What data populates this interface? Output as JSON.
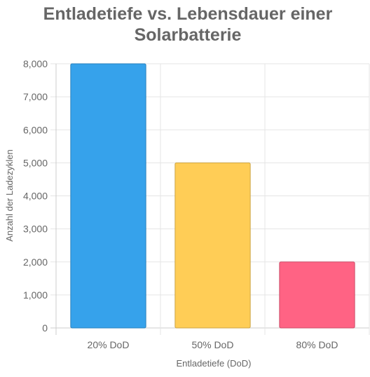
{
  "chart_data": {
    "type": "bar",
    "title_lines": [
      "Entladetiefe vs. Lebensdauer einer",
      "Solarbatterie"
    ],
    "xlabel": "Entladetiefe (DoD)",
    "ylabel": "Anzahl der Ladezyklen",
    "categories": [
      "20% DoD",
      "50% DoD",
      "80% DoD"
    ],
    "values": [
      8000,
      5000,
      2000
    ],
    "ylim": [
      0,
      8000
    ],
    "yticks": [
      "0",
      "1,000",
      "2,000",
      "3,000",
      "4,000",
      "5,000",
      "6,000",
      "7,000",
      "8,000"
    ],
    "ytick_values": [
      0,
      1000,
      2000,
      3000,
      4000,
      5000,
      6000,
      7000,
      8000
    ],
    "grid": true,
    "legend": "none",
    "colors": {
      "fills": [
        "#36a2eb",
        "#ffcd56",
        "#ff6384"
      ],
      "borders": [
        "#2b82bc",
        "#ccA445",
        "#cc4f6a"
      ],
      "title": "#666666",
      "grid": "#e5e5e5",
      "text": "#666666"
    }
  }
}
